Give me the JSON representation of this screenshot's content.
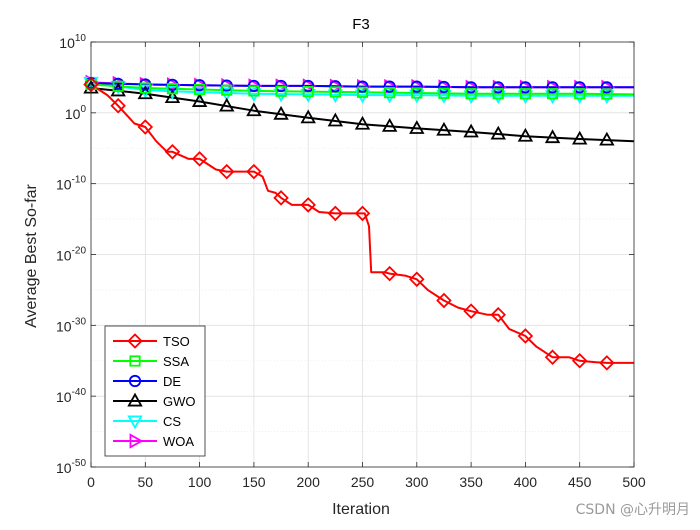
{
  "chart_data": {
    "type": "line",
    "title": "F3",
    "xlabel": "Iteration",
    "ylabel": "Average Best So-far",
    "yscale": "log",
    "xlim": [
      0,
      500
    ],
    "ylim_exp": [
      -50,
      10
    ],
    "x_ticks": [
      0,
      50,
      100,
      150,
      200,
      250,
      300,
      350,
      400,
      450,
      500
    ],
    "y_tick_exps": [
      -50,
      -40,
      -30,
      -20,
      -10,
      0,
      10
    ],
    "y_tick_labels": [
      {
        "base": "10",
        "exp": "-50"
      },
      {
        "base": "10",
        "exp": "-40"
      },
      {
        "base": "10",
        "exp": "-30"
      },
      {
        "base": "10",
        "exp": "-20"
      },
      {
        "base": "10",
        "exp": "-10"
      },
      {
        "base": "10",
        "exp": "0"
      },
      {
        "base": "10",
        "exp": "10"
      }
    ],
    "grid": true,
    "legend_location": "bottom-left",
    "series": [
      {
        "name": "TSO",
        "color": "#ff0000",
        "marker": "diamond",
        "x": [
          0,
          15,
          25,
          40,
          50,
          60,
          70,
          75,
          90,
          100,
          115,
          125,
          140,
          150,
          158,
          163,
          170,
          175,
          185,
          200,
          210,
          225,
          240,
          252,
          256,
          258,
          270,
          275,
          290,
          300,
          310,
          325,
          338,
          350,
          365,
          375,
          385,
          400,
          410,
          425,
          440,
          450,
          465,
          475,
          490,
          500
        ],
        "y_exp": [
          4.0,
          2.5,
          1.0,
          -1.5,
          -2.0,
          -4.0,
          -5.5,
          -5.5,
          -6.5,
          -6.5,
          -8.0,
          -8.3,
          -8.3,
          -8.3,
          -9.0,
          -11.0,
          -11.3,
          -12.0,
          -13.0,
          -13.0,
          -14.0,
          -14.2,
          -14.2,
          -14.2,
          -16.0,
          -22.5,
          -22.5,
          -22.7,
          -23.0,
          -23.5,
          -25.0,
          -26.5,
          -27.5,
          -28.0,
          -28.5,
          -28.5,
          -30.5,
          -31.5,
          -33.0,
          -34.5,
          -34.5,
          -35.0,
          -35.2,
          -35.3,
          -35.3,
          -35.3
        ]
      },
      {
        "name": "SSA",
        "color": "#00ff00",
        "marker": "square",
        "x": [
          0,
          50,
          100,
          150,
          200,
          250,
          300,
          350,
          400,
          450,
          500
        ],
        "y_exp": [
          4.0,
          3.5,
          3.3,
          3.1,
          3.0,
          2.9,
          2.8,
          2.7,
          2.7,
          2.7,
          2.6
        ]
      },
      {
        "name": "DE",
        "color": "#0000ff",
        "marker": "circle",
        "x": [
          0,
          50,
          100,
          150,
          200,
          250,
          300,
          350,
          400,
          450,
          500
        ],
        "y_exp": [
          4.2,
          4.0,
          3.9,
          3.8,
          3.8,
          3.7,
          3.7,
          3.6,
          3.6,
          3.6,
          3.6
        ]
      },
      {
        "name": "GWO",
        "color": "#000000",
        "marker": "triangle-up",
        "x": [
          0,
          50,
          100,
          150,
          200,
          250,
          300,
          350,
          400,
          450,
          500
        ],
        "y_exp": [
          3.5,
          2.7,
          1.6,
          0.3,
          -0.7,
          -1.6,
          -2.2,
          -2.7,
          -3.3,
          -3.7,
          -4.0
        ]
      },
      {
        "name": "CS",
        "color": "#00ffff",
        "marker": "triangle-down",
        "x": [
          0,
          50,
          100,
          150,
          200,
          250,
          300,
          350,
          400,
          450,
          500
        ],
        "y_exp": [
          4.3,
          3.2,
          2.9,
          2.7,
          2.6,
          2.5,
          2.5,
          2.4,
          2.4,
          2.4,
          2.4
        ]
      },
      {
        "name": "WOA",
        "color": "#ff00ff",
        "marker": "triangle-right",
        "x": [
          0,
          50,
          100,
          150,
          200,
          250,
          300,
          350,
          400,
          450,
          500
        ],
        "y_exp": [
          4.3,
          4.0,
          3.9,
          3.8,
          3.8,
          3.7,
          3.7,
          3.6,
          3.6,
          3.6,
          3.6
        ]
      }
    ]
  },
  "watermark": "CSDN @心升明月"
}
